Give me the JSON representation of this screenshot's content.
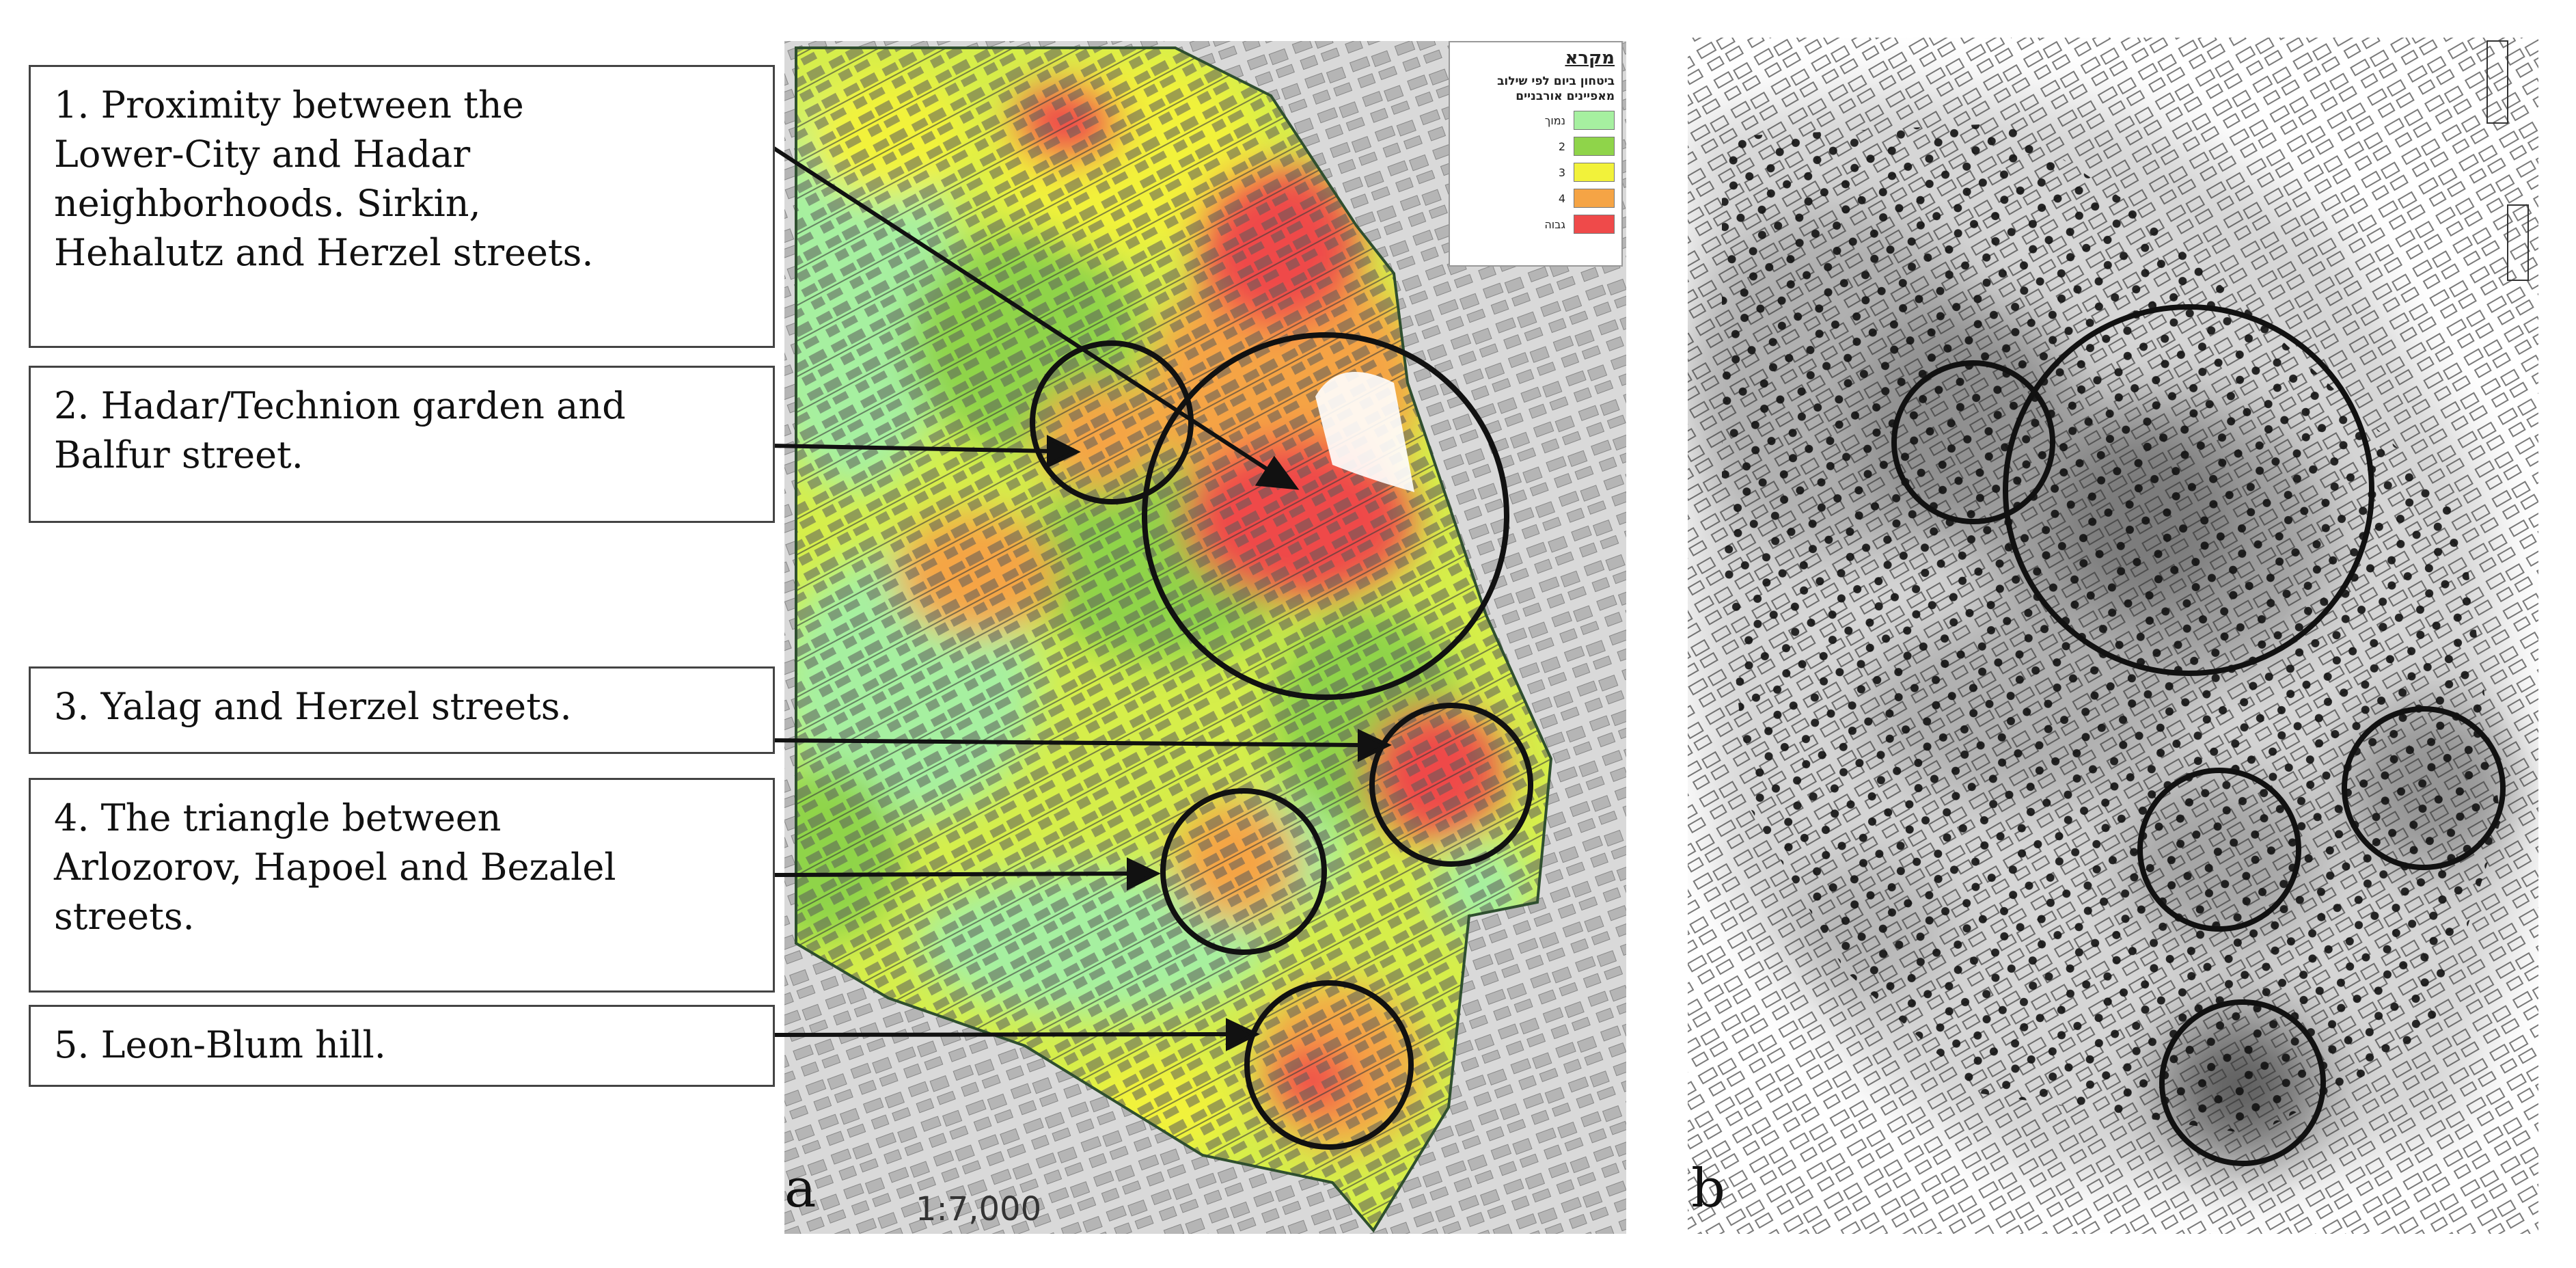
{
  "annotations": [
    {
      "lines": [
        "1. Proximity between the",
        "Lower-City and Hadar",
        "neighborhoods. Sirkin,",
        "Hehalutz and Herzel streets."
      ]
    },
    {
      "lines": [
        "2. Hadar/Technion garden and",
        "Balfur street."
      ]
    },
    {
      "lines": [
        "3. Yalag and Herzel streets."
      ]
    },
    {
      "lines": [
        "4. The triangle between",
        "Arlozorov, Hapoel and Bezalel",
        "streets."
      ]
    },
    {
      "lines": [
        "5. Leon-Blum hill."
      ]
    }
  ],
  "panel_a": {
    "letter": "a",
    "scale": "1:7,000",
    "legend": {
      "title": "מקרא",
      "subtitle": "ביטחון ביום לפי שילוב מאפיינים אורבניים",
      "items": [
        {
          "label": "נמוך",
          "color": "#a6f0a0"
        },
        {
          "label": "2",
          "color": "#8fd44a"
        },
        {
          "label": "3",
          "color": "#f2f23a"
        },
        {
          "label": "4",
          "color": "#f5a445"
        },
        {
          "label": "גבוה",
          "color": "#ef4a4a"
        }
      ]
    }
  },
  "panel_b": {
    "letter": "b"
  },
  "colors": {
    "safety_low": "#a6f0a0",
    "safety_2": "#8fd44a",
    "safety_3": "#f2f23a",
    "safety_4": "#f5a445",
    "safety_high": "#ef4a4a",
    "density_dark": "#555555",
    "density_light": "#d6d6d6"
  }
}
